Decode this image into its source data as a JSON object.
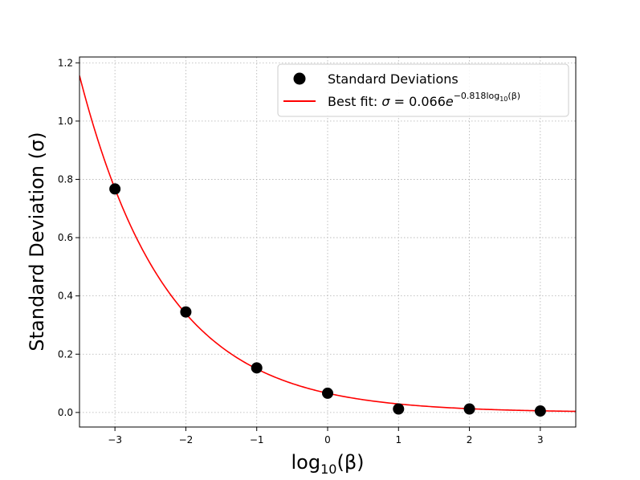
{
  "chart_data": {
    "type": "scatter",
    "xlabel": {
      "main": "log",
      "sub": "10",
      "tail": "(β)"
    },
    "ylabel": "Standard Deviation (σ)",
    "xlim": [
      -3.5,
      3.5
    ],
    "ylim": [
      -0.05,
      1.22
    ],
    "x_ticks": [
      -3,
      -2,
      -1,
      0,
      1,
      2,
      3
    ],
    "x_tick_labels": [
      "−3",
      "−2",
      "−1",
      "0",
      "1",
      "2",
      "3"
    ],
    "y_ticks": [
      0.0,
      0.2,
      0.4,
      0.6,
      0.8,
      1.0,
      1.2
    ],
    "y_tick_labels": [
      "0.0",
      "0.2",
      "0.4",
      "0.6",
      "0.8",
      "1.0",
      "1.2"
    ],
    "grid": true,
    "legend_position": "top-right",
    "series": [
      {
        "name": "Standard Deviations",
        "kind": "scatter",
        "color": "#000000",
        "x": [
          -3,
          -2,
          -1,
          0,
          1,
          2,
          3
        ],
        "y": [
          0.767,
          0.345,
          0.153,
          0.066,
          0.012,
          0.012,
          0.005
        ]
      },
      {
        "name": "Best fit",
        "kind": "line",
        "color": "#ff0000",
        "fit": {
          "a": 0.066,
          "b": -0.818
        }
      }
    ],
    "legend": {
      "scatter_label": "Standard Deviations",
      "fit_prefix": "Best fit: ",
      "fit_sigma": "σ",
      "fit_eq": " = 0.066",
      "fit_e": "e",
      "fit_exp_num": "−0.818",
      "fit_exp_log": "log",
      "fit_exp_sub": "10",
      "fit_exp_tail": "(β)"
    }
  }
}
